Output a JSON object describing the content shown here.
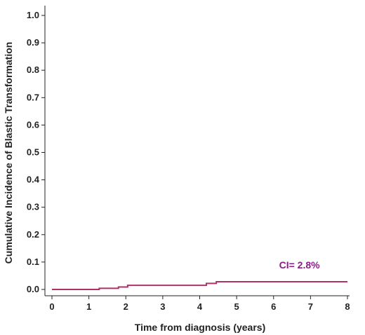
{
  "chart_data": {
    "type": "line",
    "title": "",
    "xlabel": "Time from diagnosis (years)",
    "ylabel": "Cumulative Incidence of Blastic Transformation",
    "xlim": [
      0,
      8
    ],
    "ylim": [
      0,
      1.0
    ],
    "x_ticks": [
      "0",
      "1",
      "2",
      "3",
      "4",
      "5",
      "6",
      "7",
      "8"
    ],
    "y_ticks": [
      "0.0",
      "0.1",
      "0.2",
      "0.3",
      "0.4",
      "0.5",
      "0.6",
      "0.7",
      "0.8",
      "0.9",
      "1.0"
    ],
    "grid": false,
    "series": [
      {
        "color": "#b0306a",
        "step": true,
        "x": [
          0,
          1.28,
          1.8,
          2.05,
          4.18,
          4.45,
          8.0
        ],
        "y": [
          0.0,
          0.004,
          0.009,
          0.015,
          0.022,
          0.028,
          0.028
        ]
      }
    ],
    "annotations": [
      {
        "text": "CI= 2.8%",
        "x": 6.7,
        "y": 0.09,
        "color": "#8b1a8b"
      }
    ]
  }
}
